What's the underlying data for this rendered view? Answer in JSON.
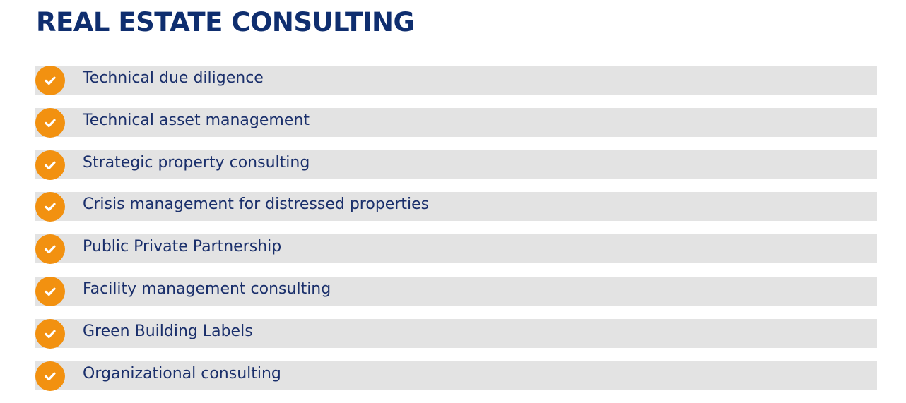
{
  "page": {
    "title": "REAL ESTATE CONSULTING"
  },
  "services": {
    "items": [
      {
        "label": "Technical due diligence",
        "icon": "check-icon"
      },
      {
        "label": "Technical asset management",
        "icon": "check-icon"
      },
      {
        "label": "Strategic property consulting",
        "icon": "check-icon"
      },
      {
        "label": "Crisis management for distressed properties",
        "icon": "check-icon"
      },
      {
        "label": "Public Private Partnership",
        "icon": "check-icon"
      },
      {
        "label": "Facility management consulting",
        "icon": "check-icon"
      },
      {
        "label": "Green Building Labels",
        "icon": "check-icon"
      },
      {
        "label": "Organizational consulting",
        "icon": "check-icon"
      }
    ]
  },
  "colors": {
    "title": "#0f2e6f",
    "text": "#1a2f6b",
    "accent": "#f29110",
    "row_background": "#e3e3e3",
    "check_mark": "#ffffff"
  }
}
